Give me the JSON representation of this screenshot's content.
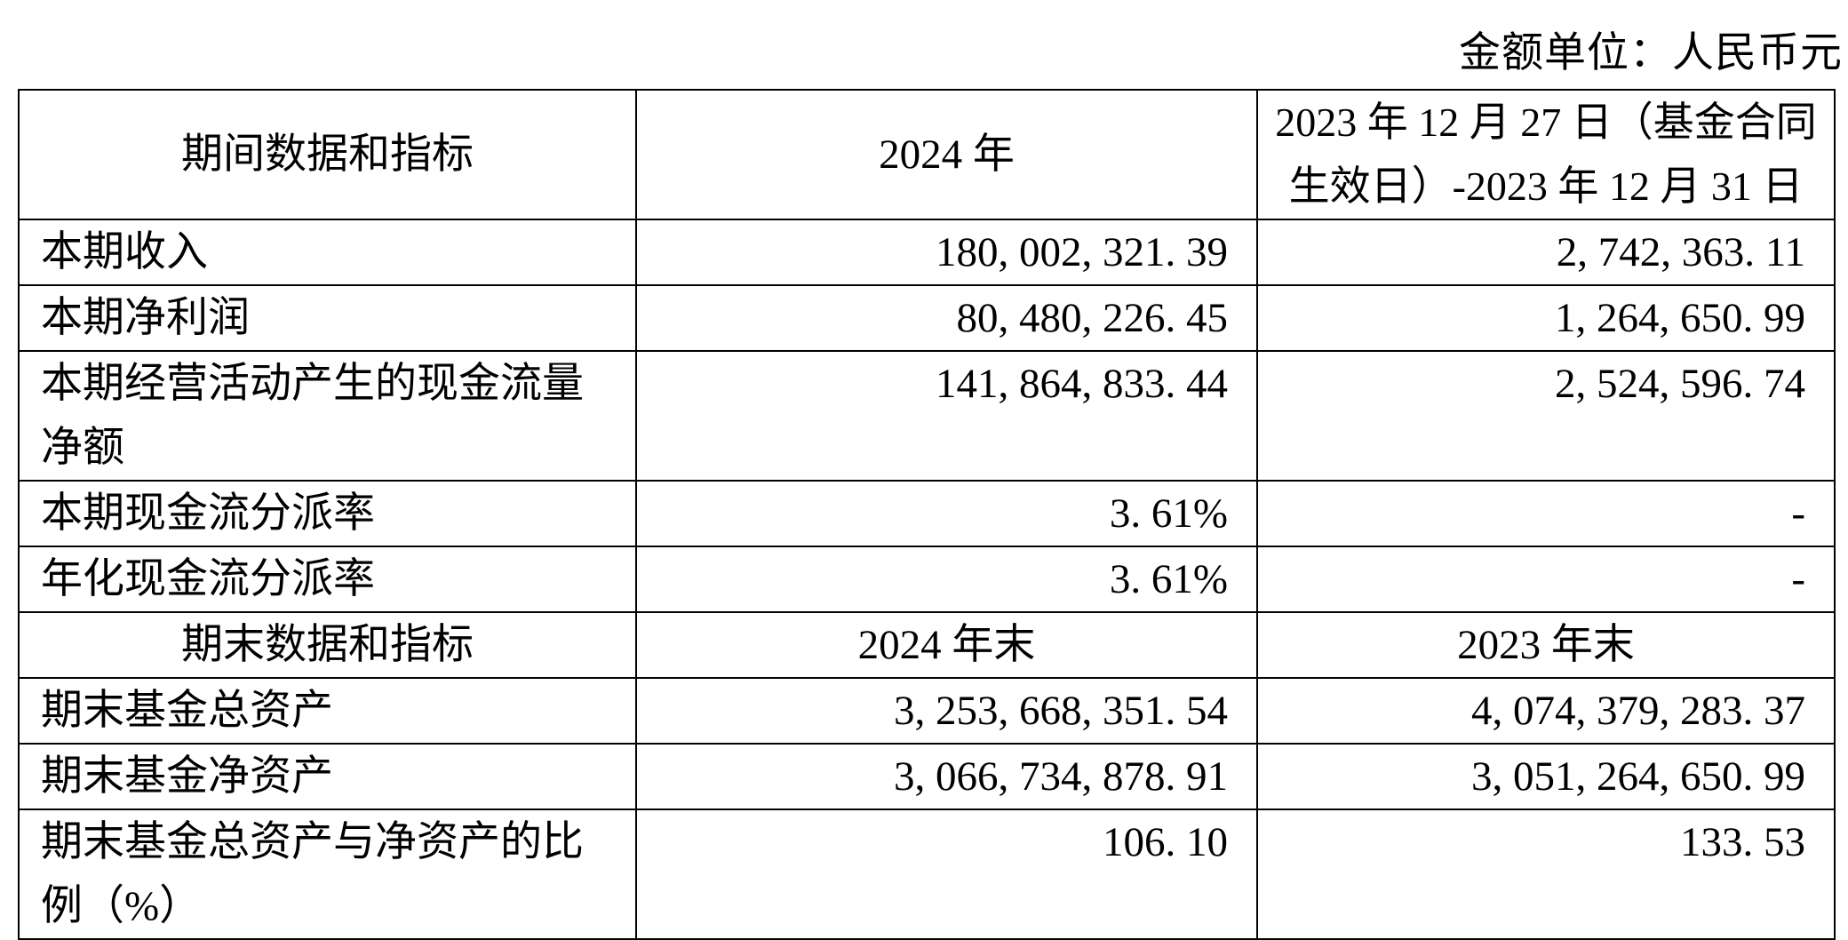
{
  "page": {
    "unit_label": "金额单位：人民币元"
  },
  "colors": {
    "text": "#000000",
    "background": "#ffffff",
    "table_border": "#000000"
  },
  "table": {
    "period_header": {
      "indicator": "期间数据和指标",
      "col2024": "2024 年",
      "col2023_lines": [
        "2023 年 12 月 27 日（基金合同",
        "生效日）-2023 年 12 月 31 日"
      ]
    },
    "period_rows": [
      {
        "label_lines": [
          "本期收入"
        ],
        "v2024": "180, 002, 321. 39",
        "v2023": "2, 742, 363. 11"
      },
      {
        "label_lines": [
          "本期净利润"
        ],
        "v2024": "80, 480, 226. 45",
        "v2023": "1, 264, 650. 99"
      },
      {
        "label_lines": [
          "本期经营活动产生的现金流量",
          "净额"
        ],
        "v2024": "141, 864, 833. 44",
        "v2023": "2, 524, 596. 74"
      },
      {
        "label_lines": [
          "本期现金流分派率"
        ],
        "v2024": "3. 61%",
        "v2023": "-"
      },
      {
        "label_lines": [
          "年化现金流分派率"
        ],
        "v2024": "3. 61%",
        "v2023": "-"
      }
    ],
    "endperiod_header": {
      "indicator": "期末数据和指标",
      "col2024": "2024 年末",
      "col2023": "2023 年末"
    },
    "endperiod_rows": [
      {
        "label_lines": [
          "期末基金总资产"
        ],
        "v2024": "3, 253, 668, 351. 54",
        "v2023": "4, 074, 379, 283. 37"
      },
      {
        "label_lines": [
          "期末基金净资产"
        ],
        "v2024": "3, 066, 734, 878. 91",
        "v2023": "3, 051, 264, 650. 99"
      },
      {
        "label_lines": [
          "期末基金总资产与净资产的比",
          "例（%）"
        ],
        "v2024": "106. 10",
        "v2023": "133. 53"
      }
    ]
  }
}
